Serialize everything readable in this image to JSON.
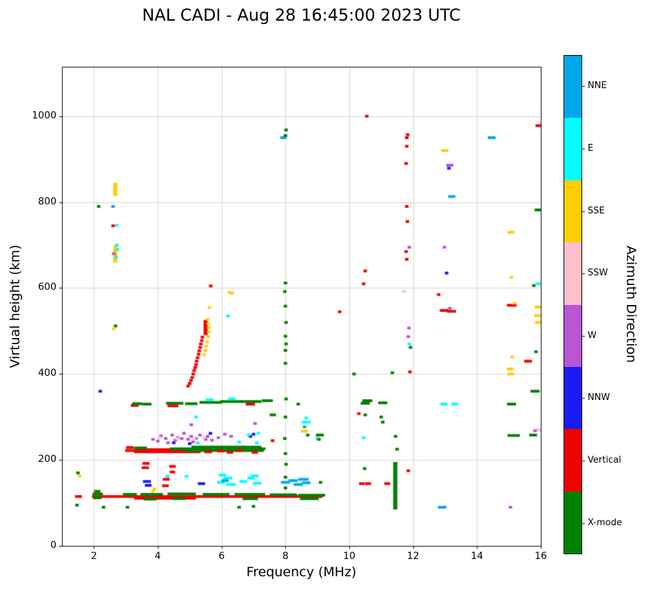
{
  "chart_data": {
    "type": "scatter",
    "title": "NAL CADI - Aug 28 16:45:00 2023 UTC",
    "xlabel": "Frequency (MHz)",
    "ylabel": "Virtual height (km)",
    "colorbar_label": "Azimuth Direction",
    "xlim": [
      1,
      16
    ],
    "ylim": [
      0,
      1115
    ],
    "xticks": [
      2,
      4,
      6,
      8,
      10,
      12,
      14,
      16
    ],
    "yticks": [
      0,
      200,
      400,
      600,
      800,
      1000
    ],
    "grid": true,
    "legend_position": "colorbar-right",
    "categories": [
      {
        "name": "X-mode",
        "color": "#008000"
      },
      {
        "name": "Vertical",
        "color": "#f00000"
      },
      {
        "name": "NNW",
        "color": "#1a1af2"
      },
      {
        "name": "W",
        "color": "#ba55d3"
      },
      {
        "name": "SSW",
        "color": "#ffc0cb"
      },
      {
        "name": "SSE",
        "color": "#ffce00"
      },
      {
        "name": "E",
        "color": "#00ffff"
      },
      {
        "name": "NNE",
        "color": "#00a8e8"
      }
    ],
    "point_format": "[frequency_MHz, virtual_height_km, category_index]",
    "runs_format": "[freq_start_MHz, freq_end_MHz, virtual_height_km, category_index]",
    "vruns_format": "[frequency_MHz, height_start_km, height_end_km, category_index]",
    "points": [
      [
        1.47,
        95,
        0
      ],
      [
        1.5,
        170,
        0
      ],
      [
        1.55,
        163,
        5
      ],
      [
        2.3,
        90,
        0
      ],
      [
        2.15,
        790,
        0
      ],
      [
        2.2,
        360,
        2
      ],
      [
        2.6,
        790,
        7
      ],
      [
        2.6,
        745,
        1
      ],
      [
        2.72,
        746,
        6
      ],
      [
        2.62,
        680,
        3
      ],
      [
        2.7,
        672,
        6
      ],
      [
        2.74,
        690,
        6
      ],
      [
        2.72,
        700,
        6
      ],
      [
        2.62,
        505,
        5
      ],
      [
        2.68,
        512,
        0
      ],
      [
        3.05,
        90,
        0
      ],
      [
        3.85,
        248,
        3
      ],
      [
        4.0,
        244,
        3
      ],
      [
        4.1,
        256,
        3
      ],
      [
        4.25,
        250,
        3
      ],
      [
        4.32,
        240,
        3
      ],
      [
        4.45,
        258,
        3
      ],
      [
        4.55,
        246,
        3
      ],
      [
        4.62,
        252,
        3
      ],
      [
        4.75,
        250,
        3
      ],
      [
        4.82,
        262,
        3
      ],
      [
        4.95,
        248,
        3
      ],
      [
        5.05,
        255,
        3
      ],
      [
        5.1,
        242,
        3
      ],
      [
        5.2,
        250,
        3
      ],
      [
        5.32,
        258,
        3
      ],
      [
        5.5,
        248,
        3
      ],
      [
        5.56,
        255,
        3
      ],
      [
        5.7,
        246,
        3
      ],
      [
        5.9,
        252,
        3
      ],
      [
        6.1,
        260,
        3
      ],
      [
        6.3,
        255,
        3
      ],
      [
        7.05,
        285,
        3
      ],
      [
        5.05,
        282,
        3
      ],
      [
        4.05,
        252,
        4
      ],
      [
        4.6,
        250,
        4
      ],
      [
        5.15,
        248,
        4
      ],
      [
        5.45,
        252,
        4
      ],
      [
        4.5,
        240,
        2
      ],
      [
        5.0,
        238,
        2
      ],
      [
        5.65,
        262,
        2
      ],
      [
        6.9,
        255,
        2
      ],
      [
        7.0,
        260,
        2
      ],
      [
        5.25,
        240,
        6
      ],
      [
        6.55,
        242,
        6
      ],
      [
        7.1,
        240,
        6
      ],
      [
        6.85,
        258,
        6
      ],
      [
        7.15,
        262,
        6
      ],
      [
        5.2,
        300,
        6
      ],
      [
        3.9,
        133,
        5
      ],
      [
        3.85,
        128,
        5
      ],
      [
        4.3,
        162,
        6
      ],
      [
        4.9,
        162,
        6
      ],
      [
        4.95,
        372,
        1
      ],
      [
        5.0,
        378,
        1
      ],
      [
        5.04,
        385,
        1
      ],
      [
        5.08,
        392,
        1
      ],
      [
        5.11,
        400,
        1
      ],
      [
        5.14,
        408,
        1
      ],
      [
        5.17,
        415,
        1
      ],
      [
        5.2,
        422,
        1
      ],
      [
        5.22,
        430,
        1
      ],
      [
        5.25,
        438,
        1
      ],
      [
        5.28,
        446,
        1
      ],
      [
        5.3,
        454,
        1
      ],
      [
        5.33,
        462,
        1
      ],
      [
        5.35,
        470,
        1
      ],
      [
        5.38,
        478,
        1
      ],
      [
        5.4,
        486,
        1
      ],
      [
        5.45,
        445,
        5
      ],
      [
        5.5,
        455,
        5
      ],
      [
        5.52,
        465,
        5
      ],
      [
        5.55,
        475,
        5
      ],
      [
        5.58,
        487,
        5
      ],
      [
        5.6,
        498,
        5
      ],
      [
        5.6,
        508,
        5
      ],
      [
        5.58,
        517,
        5
      ],
      [
        5.56,
        527,
        5
      ],
      [
        5.62,
        555,
        5
      ],
      [
        5.66,
        605,
        1
      ],
      [
        6.2,
        535,
        6
      ],
      [
        6.25,
        590,
        5
      ],
      [
        6.32,
        588,
        5
      ],
      [
        8.0,
        135,
        0
      ],
      [
        8.0,
        160,
        0
      ],
      [
        8.02,
        190,
        0
      ],
      [
        8.0,
        215,
        0
      ],
      [
        7.98,
        250,
        0
      ],
      [
        8.0,
        300,
        0
      ],
      [
        8.02,
        342,
        0
      ],
      [
        8.0,
        425,
        0
      ],
      [
        8.0,
        455,
        0
      ],
      [
        8.02,
        470,
        0
      ],
      [
        8.0,
        488,
        0
      ],
      [
        8.02,
        520,
        0
      ],
      [
        8.0,
        558,
        0
      ],
      [
        7.98,
        592,
        0
      ],
      [
        8.0,
        612,
        0
      ],
      [
        8.0,
        955,
        0
      ],
      [
        8.02,
        968,
        0
      ],
      [
        8.4,
        330,
        0
      ],
      [
        8.65,
        298,
        6
      ],
      [
        8.6,
        277,
        7
      ],
      [
        8.7,
        258,
        0
      ],
      [
        9.0,
        250,
        6
      ],
      [
        9.05,
        248,
        0
      ],
      [
        9.1,
        148,
        0
      ],
      [
        6.55,
        90,
        0
      ],
      [
        7.0,
        92,
        0
      ],
      [
        7.6,
        245,
        1
      ],
      [
        9.7,
        545,
        1
      ],
      [
        10.15,
        400,
        0
      ],
      [
        10.3,
        308,
        1
      ],
      [
        10.5,
        305,
        0
      ],
      [
        10.48,
        180,
        0
      ],
      [
        10.45,
        610,
        1
      ],
      [
        10.5,
        640,
        1
      ],
      [
        10.55,
        1000,
        1
      ],
      [
        10.45,
        252,
        6
      ],
      [
        11.0,
        300,
        0
      ],
      [
        11.05,
        288,
        0
      ],
      [
        11.5,
        225,
        0
      ],
      [
        11.45,
        255,
        0
      ],
      [
        11.35,
        403,
        0
      ],
      [
        11.85,
        175,
        1
      ],
      [
        11.9,
        405,
        1
      ],
      [
        11.8,
        667,
        1
      ],
      [
        11.78,
        685,
        1
      ],
      [
        11.82,
        755,
        1
      ],
      [
        11.8,
        790,
        1
      ],
      [
        11.78,
        890,
        1
      ],
      [
        11.8,
        930,
        1
      ],
      [
        11.8,
        950,
        1
      ],
      [
        11.83,
        957,
        1
      ],
      [
        11.88,
        695,
        3
      ],
      [
        11.85,
        487,
        3
      ],
      [
        11.87,
        507,
        3
      ],
      [
        11.88,
        470,
        6
      ],
      [
        11.92,
        462,
        0
      ],
      [
        11.72,
        592,
        4
      ],
      [
        12.8,
        585,
        1
      ],
      [
        13.15,
        553,
        3
      ],
      [
        13.05,
        635,
        2
      ],
      [
        12.98,
        695,
        3
      ],
      [
        13.12,
        879,
        2
      ],
      [
        15.08,
        625,
        5
      ],
      [
        15.18,
        565,
        5
      ],
      [
        15.1,
        440,
        5
      ],
      [
        15.05,
        90,
        3
      ],
      [
        15.78,
        606,
        0
      ],
      [
        15.85,
        452,
        0
      ],
      [
        15.82,
        268,
        3
      ]
    ],
    "runs": [
      [
        1.45,
        1.58,
        115,
        1
      ],
      [
        1.98,
        9.12,
        115,
        1
      ],
      [
        3.3,
        5.15,
        111,
        1
      ],
      [
        2.0,
        2.24,
        121,
        0
      ],
      [
        2.02,
        2.2,
        112,
        0
      ],
      [
        2.05,
        2.16,
        127,
        0
      ],
      [
        2.95,
        3.3,
        120,
        0
      ],
      [
        3.5,
        4.12,
        120,
        0
      ],
      [
        4.35,
        5.15,
        121,
        0
      ],
      [
        5.45,
        6.2,
        120,
        0
      ],
      [
        6.45,
        7.32,
        120,
        0
      ],
      [
        7.55,
        8.32,
        119,
        0
      ],
      [
        8.45,
        9.2,
        118,
        0
      ],
      [
        3.6,
        3.92,
        109,
        0
      ],
      [
        4.5,
        4.82,
        110,
        0
      ],
      [
        6.7,
        7.1,
        110,
        0
      ],
      [
        8.5,
        9.0,
        110,
        0
      ],
      [
        3.58,
        3.74,
        150,
        2
      ],
      [
        3.64,
        3.76,
        141,
        2
      ],
      [
        3.54,
        3.68,
        182,
        1
      ],
      [
        3.56,
        3.7,
        192,
        1
      ],
      [
        4.18,
        4.3,
        140,
        1
      ],
      [
        4.2,
        4.33,
        155,
        1
      ],
      [
        4.4,
        4.52,
        185,
        1
      ],
      [
        4.42,
        4.5,
        172,
        1
      ],
      [
        5.9,
        6.06,
        148,
        6
      ],
      [
        6.1,
        6.3,
        158,
        6
      ],
      [
        6.18,
        6.4,
        143,
        6
      ],
      [
        5.95,
        6.1,
        165,
        6
      ],
      [
        6.6,
        6.76,
        150,
        6
      ],
      [
        6.85,
        7.0,
        158,
        6
      ],
      [
        7.02,
        7.2,
        146,
        6
      ],
      [
        6.95,
        7.12,
        163,
        6
      ],
      [
        7.9,
        8.1,
        148,
        7
      ],
      [
        8.14,
        8.34,
        152,
        7
      ],
      [
        8.3,
        8.5,
        143,
        7
      ],
      [
        8.44,
        8.68,
        155,
        7
      ],
      [
        8.56,
        8.74,
        147,
        7
      ],
      [
        6.04,
        6.18,
        152,
        7
      ],
      [
        5.3,
        5.44,
        145,
        2
      ],
      [
        3.02,
        3.3,
        222,
        1
      ],
      [
        3.05,
        3.2,
        229,
        1
      ],
      [
        3.3,
        5.3,
        219,
        1
      ],
      [
        3.35,
        5.15,
        224,
        1
      ],
      [
        3.3,
        3.62,
        228,
        0
      ],
      [
        4.42,
        7.33,
        226,
        0
      ],
      [
        4.9,
        7.28,
        222,
        0
      ],
      [
        5.1,
        7.2,
        230,
        0
      ],
      [
        5.5,
        5.66,
        219,
        1
      ],
      [
        5.9,
        6.06,
        221,
        1
      ],
      [
        6.2,
        6.32,
        218,
        1
      ],
      [
        6.5,
        6.62,
        222,
        1
      ],
      [
        6.98,
        7.1,
        218,
        1
      ],
      [
        3.2,
        3.36,
        327,
        1
      ],
      [
        3.24,
        3.46,
        331,
        0
      ],
      [
        3.55,
        3.76,
        330,
        0
      ],
      [
        4.3,
        4.76,
        332,
        0
      ],
      [
        4.35,
        4.6,
        326,
        1
      ],
      [
        4.9,
        5.2,
        331,
        0
      ],
      [
        5.35,
        5.96,
        334,
        0
      ],
      [
        6.0,
        6.6,
        336,
        0
      ],
      [
        6.65,
        7.2,
        336,
        0
      ],
      [
        6.8,
        7.0,
        330,
        1
      ],
      [
        7.3,
        7.56,
        338,
        0
      ],
      [
        5.55,
        5.7,
        340,
        6
      ],
      [
        6.25,
        6.4,
        342,
        6
      ],
      [
        8.55,
        8.75,
        288,
        6
      ],
      [
        8.52,
        8.66,
        267,
        5
      ],
      [
        9.0,
        9.16,
        258,
        0
      ],
      [
        7.88,
        7.98,
        950,
        7
      ],
      [
        7.55,
        7.66,
        305,
        0
      ],
      [
        10.4,
        10.6,
        332,
        0
      ],
      [
        10.45,
        10.68,
        338,
        0
      ],
      [
        10.95,
        11.15,
        333,
        0
      ],
      [
        10.35,
        10.44,
        145,
        1
      ],
      [
        10.54,
        10.64,
        145,
        1
      ],
      [
        11.14,
        11.24,
        145,
        1
      ],
      [
        12.9,
        13.02,
        330,
        6
      ],
      [
        13.24,
        13.36,
        330,
        6
      ],
      [
        12.82,
        13.0,
        90,
        7
      ],
      [
        12.88,
        13.06,
        548,
        1
      ],
      [
        13.1,
        13.3,
        546,
        1
      ],
      [
        13.08,
        13.22,
        886,
        3
      ],
      [
        12.92,
        13.06,
        920,
        5
      ],
      [
        13.14,
        13.28,
        813,
        7
      ],
      [
        14.38,
        14.54,
        950,
        7
      ],
      [
        15.0,
        15.13,
        730,
        5
      ],
      [
        14.98,
        15.2,
        560,
        1
      ],
      [
        14.97,
        15.1,
        412,
        5
      ],
      [
        15.0,
        15.12,
        400,
        5
      ],
      [
        14.98,
        15.18,
        330,
        0
      ],
      [
        15.0,
        15.3,
        257,
        0
      ],
      [
        15.52,
        15.68,
        430,
        1
      ],
      [
        15.88,
        16.02,
        978,
        1
      ],
      [
        15.85,
        16.0,
        782,
        0
      ],
      [
        15.88,
        16.04,
        610,
        6
      ],
      [
        15.85,
        15.98,
        556,
        5
      ],
      [
        15.84,
        15.96,
        536,
        5
      ],
      [
        15.86,
        15.98,
        520,
        5
      ],
      [
        15.72,
        15.92,
        360,
        0
      ],
      [
        15.85,
        16.0,
        270,
        4
      ],
      [
        15.68,
        15.84,
        258,
        0
      ]
    ],
    "vruns": [
      [
        2.67,
        818,
        842,
        5
      ],
      [
        2.67,
        663,
        696,
        5
      ],
      [
        11.44,
        88,
        192,
        0
      ],
      [
        5.5,
        494,
        523,
        1
      ]
    ]
  }
}
